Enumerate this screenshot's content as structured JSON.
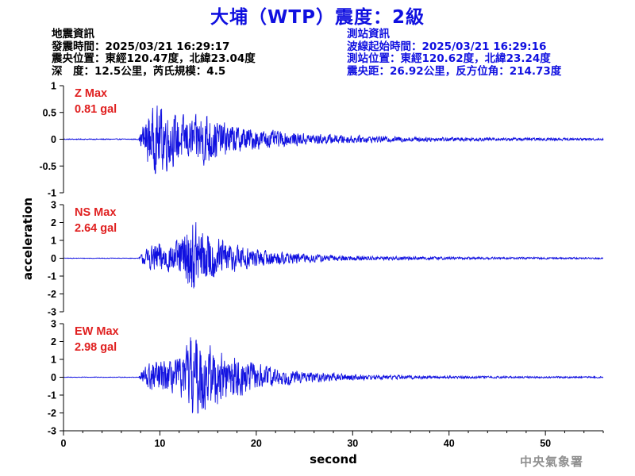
{
  "header": {
    "title": "大埔（WTP）震度：2級",
    "quake_info": {
      "heading": "地震資訊",
      "origin_time": "發震時間：2025/03/21 16:29:17",
      "epicenter": "震央位置：東經120.47度，北緯23.04度",
      "depth_magnitude": "深　度：12.5公里，芮氏規模：4.5"
    },
    "station_info": {
      "heading": "測站資訊",
      "wave_start": "波線起始時間：2025/03/21 16:29:16",
      "station_position": "測站位置：東經120.62度，北緯23.24度",
      "distance_azimuth": "震央距：26.92公里，反方位角：214.73度"
    }
  },
  "footer": {
    "agency": "中央氣象署"
  },
  "colors": {
    "trace": "#1010e0",
    "max_label": "#e02020",
    "title": "#1010e0",
    "axis": "#000000"
  },
  "chart_data": {
    "type": "line",
    "xlabel": "second",
    "ylabel": "acceleration",
    "xlim": [
      0,
      56
    ],
    "xticks": [
      0,
      10,
      20,
      30,
      40,
      50
    ],
    "grid": false,
    "panels": [
      {
        "component": "Z",
        "max_label": "Z Max",
        "max_value_label": "0.81 gal",
        "peak_abs": 0.81,
        "ylim": [
          -1,
          1
        ],
        "yticks": [
          -1,
          -0.5,
          0,
          0.5,
          1
        ],
        "envelope": [
          [
            0,
            0.01
          ],
          [
            7.8,
            0.01
          ],
          [
            8.2,
            0.3
          ],
          [
            8.8,
            0.55
          ],
          [
            9.5,
            0.7
          ],
          [
            10.2,
            0.75
          ],
          [
            11.5,
            0.55
          ],
          [
            12.5,
            0.5
          ],
          [
            13.5,
            0.45
          ],
          [
            14.8,
            0.65
          ],
          [
            16,
            0.4
          ],
          [
            17.5,
            0.32
          ],
          [
            19,
            0.26
          ],
          [
            21,
            0.2
          ],
          [
            23,
            0.16
          ],
          [
            25,
            0.13
          ],
          [
            28,
            0.1
          ],
          [
            32,
            0.07
          ],
          [
            38,
            0.05
          ],
          [
            45,
            0.035
          ],
          [
            56,
            0.025
          ]
        ]
      },
      {
        "component": "NS",
        "max_label": "NS Max",
        "max_value_label": "2.64 gal",
        "peak_abs": 2.64,
        "ylim": [
          -3,
          3
        ],
        "yticks": [
          -3,
          -2,
          -1,
          0,
          1,
          2,
          3
        ],
        "envelope": [
          [
            0,
            0.02
          ],
          [
            7.8,
            0.02
          ],
          [
            8.2,
            0.4
          ],
          [
            9,
            0.8
          ],
          [
            10,
            1.1
          ],
          [
            11,
            0.9
          ],
          [
            12,
            1.2
          ],
          [
            13.5,
            2.5
          ],
          [
            14.5,
            1.8
          ],
          [
            16,
            1.3
          ],
          [
            18,
            0.9
          ],
          [
            20,
            0.6
          ],
          [
            22,
            0.45
          ],
          [
            25,
            0.3
          ],
          [
            28,
            0.2
          ],
          [
            32,
            0.14
          ],
          [
            38,
            0.1
          ],
          [
            45,
            0.07
          ],
          [
            56,
            0.05
          ]
        ]
      },
      {
        "component": "EW",
        "max_label": "EW Max",
        "max_value_label": "2.98 gal",
        "peak_abs": 2.98,
        "ylim": [
          -3,
          3
        ],
        "yticks": [
          -3,
          -2,
          -1,
          0,
          1,
          2,
          3
        ],
        "envelope": [
          [
            0,
            0.02
          ],
          [
            7.8,
            0.02
          ],
          [
            8.2,
            0.6
          ],
          [
            9,
            1.0
          ],
          [
            10,
            1.1
          ],
          [
            11,
            1.0
          ],
          [
            12.5,
            1.4
          ],
          [
            13.3,
            2.9
          ],
          [
            14.5,
            2.4
          ],
          [
            15.5,
            2.0
          ],
          [
            17,
            1.4
          ],
          [
            18.5,
            1.2
          ],
          [
            20,
            0.9
          ],
          [
            22,
            0.6
          ],
          [
            25,
            0.35
          ],
          [
            28,
            0.25
          ],
          [
            32,
            0.16
          ],
          [
            38,
            0.1
          ],
          [
            45,
            0.07
          ],
          [
            56,
            0.05
          ]
        ]
      }
    ]
  }
}
